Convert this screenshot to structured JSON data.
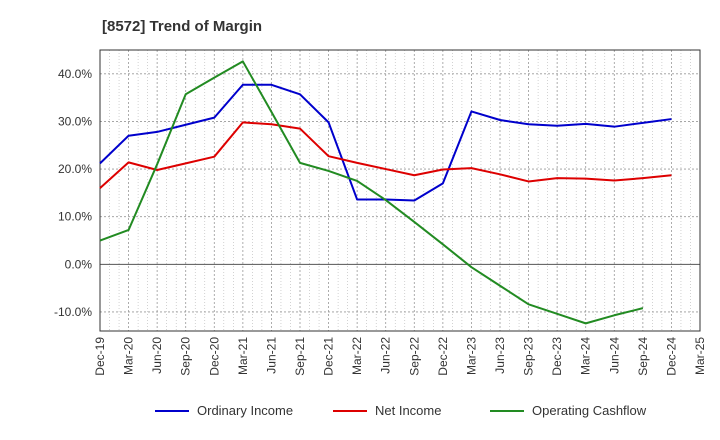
{
  "chart_data": {
    "type": "line",
    "title": "[8572]  Trend of Margin",
    "xlabel": "",
    "ylabel": "",
    "ylim": [
      -14,
      45
    ],
    "yticks": [
      -10,
      0,
      10,
      20,
      30,
      40
    ],
    "ytick_labels": [
      "-10.0%",
      "0.0%",
      "10.0%",
      "20.0%",
      "30.0%",
      "40.0%"
    ],
    "categories": [
      "Dec-19",
      "Mar-20",
      "Jun-20",
      "Sep-20",
      "Dec-20",
      "Mar-21",
      "Jun-21",
      "Sep-21",
      "Dec-21",
      "Mar-22",
      "Jun-22",
      "Sep-22",
      "Dec-22",
      "Mar-23",
      "Jun-23",
      "Sep-23",
      "Dec-23",
      "Mar-24",
      "Jun-24",
      "Sep-24",
      "Dec-24",
      "Mar-25"
    ],
    "grid": true,
    "legend_position": "bottom",
    "series": [
      {
        "name": "Ordinary Income",
        "color": "#0000cc",
        "values": [
          21.2,
          27.0,
          27.8,
          29.3,
          30.8,
          37.7,
          37.7,
          35.7,
          29.8,
          13.6,
          13.6,
          13.4,
          17.0,
          32.1,
          30.3,
          29.4,
          29.1,
          29.5,
          28.9,
          29.7,
          30.5,
          null
        ]
      },
      {
        "name": "Net Income",
        "color": "#dd0000",
        "values": [
          16.0,
          21.4,
          19.8,
          21.2,
          22.6,
          29.8,
          29.4,
          28.5,
          22.7,
          21.3,
          20.0,
          18.7,
          19.9,
          20.2,
          18.9,
          17.4,
          18.1,
          18.0,
          17.6,
          18.1,
          18.7,
          null
        ]
      },
      {
        "name": "Operating Cashflow",
        "color": "#228b22",
        "values": [
          5.0,
          7.2,
          21.0,
          35.7,
          39.2,
          42.6,
          32.0,
          21.3,
          19.6,
          17.5,
          13.5,
          8.9,
          4.2,
          -0.6,
          -4.5,
          -8.4,
          -10.4,
          -12.4,
          -10.7,
          -9.2,
          null,
          null
        ]
      }
    ]
  }
}
